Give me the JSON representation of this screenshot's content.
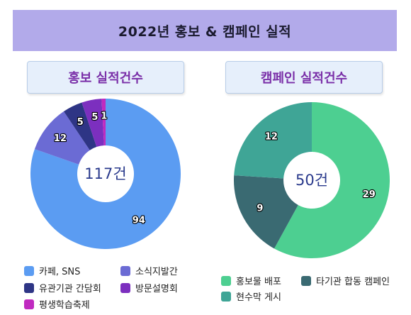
{
  "title": "2022년 홍보 & 캠페인 실적",
  "chart_data": [
    {
      "type": "pie",
      "title": "홍보 실적건수",
      "center_label": "117건",
      "slices": [
        {
          "label": "카페, SNS",
          "value": 94,
          "color": "#5b9cf2"
        },
        {
          "label": "소식지발간",
          "value": 12,
          "color": "#6b6bd4"
        },
        {
          "label": "유관기관 간담회",
          "value": 5,
          "color": "#2e3585"
        },
        {
          "label": "방문설명회",
          "value": 5,
          "color": "#7c2fbf"
        },
        {
          "label": "평생학습축제",
          "value": 1,
          "color": "#c02ac0"
        }
      ],
      "legend": "bottom"
    },
    {
      "type": "pie",
      "title": "캠페인 실적건수",
      "center_label": "50건",
      "slices": [
        {
          "label": "홍보물 배포",
          "value": 29,
          "color": "#4dcf91"
        },
        {
          "label": "타기관 합동 캠페인",
          "value": 9,
          "color": "#3a6a72"
        },
        {
          "label": "현수막 게시",
          "value": 12,
          "color": "#3fa596"
        }
      ],
      "legend": "bottom"
    }
  ]
}
